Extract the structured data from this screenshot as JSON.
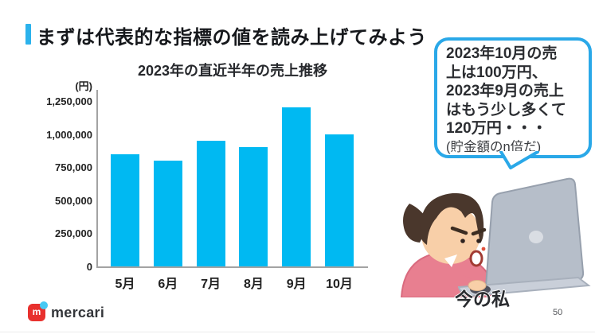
{
  "slide": {
    "title": "まずは代表的な指標の値を読み上げてみよう",
    "accent_color": "#2bb2ec"
  },
  "chart_data": {
    "type": "bar",
    "title": "2023年の直近半年の売上推移",
    "unit_label": "(円)",
    "categories": [
      "5月",
      "6月",
      "7月",
      "8月",
      "9月",
      "10月"
    ],
    "values": [
      850000,
      800000,
      950000,
      900000,
      1200000,
      1000000
    ],
    "xlabel": "",
    "ylabel": "(円)",
    "ylim": [
      0,
      1250000
    ],
    "yticks": [
      0,
      250000,
      500000,
      750000,
      1000000,
      1250000
    ],
    "bar_color": "#00b9f2",
    "grid": false,
    "legend": "none"
  },
  "speech_bubble": {
    "lines": [
      "2023年10月の売",
      "上は100万円、",
      "2023年9月の売上",
      "はもう少し多くて",
      "120万円・・・"
    ],
    "note": "(貯金額のn倍だ)",
    "border_color": "#2aa8e8"
  },
  "illustration": {
    "caption": "今の私",
    "icon": "person-at-laptop"
  },
  "footer": {
    "brand": "mercari",
    "page": "50"
  }
}
